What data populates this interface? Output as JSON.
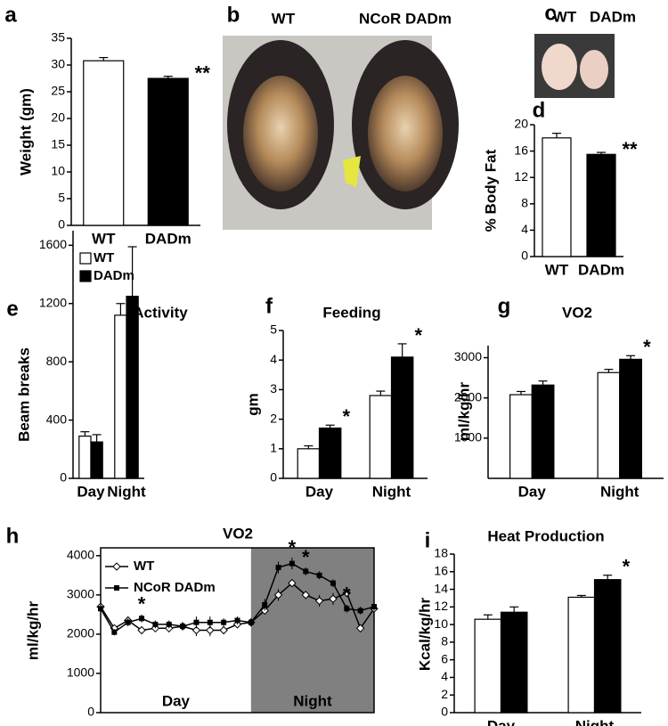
{
  "photos": [
    {
      "panel": "b",
      "labels": [
        "WT",
        "NCoR DADm"
      ]
    },
    {
      "panel": "c",
      "labels": [
        "WT",
        "DADm"
      ]
    }
  ],
  "chart_data": [
    {
      "type": "bar",
      "panel": "a",
      "ylabel": "Weight (gm)",
      "categories": [
        "WT",
        "DADm"
      ],
      "values": [
        30.8,
        27.5
      ],
      "errors": [
        0.6,
        0.4
      ],
      "colors": [
        "#ffffff",
        "#000000"
      ],
      "significance": [
        null,
        "**"
      ],
      "ylim": [
        0,
        35
      ],
      "yticks": [
        0,
        5,
        10,
        15,
        20,
        25,
        30,
        35
      ]
    },
    {
      "type": "bar",
      "panel": "d",
      "ylabel": "% Body Fat",
      "categories": [
        "WT",
        "DADm"
      ],
      "values": [
        18,
        15.5
      ],
      "errors": [
        0.7,
        0.3
      ],
      "colors": [
        "#ffffff",
        "#000000"
      ],
      "significance": [
        null,
        "**"
      ],
      "ylim": [
        0,
        20
      ],
      "yticks": [
        0,
        4,
        8,
        12,
        16,
        20
      ]
    },
    {
      "type": "bar",
      "panel": "e",
      "title": "Activity",
      "ylabel": "Beam breaks",
      "categories": [
        "Day",
        "Night"
      ],
      "series": [
        {
          "name": "WT",
          "color": "#ffffff",
          "values": [
            290,
            1120
          ],
          "errors": [
            30,
            80
          ]
        },
        {
          "name": "DADm",
          "color": "#000000",
          "values": [
            250,
            1250
          ],
          "errors": [
            50,
            340
          ]
        }
      ],
      "legend": true,
      "ylim": [
        0,
        1700
      ],
      "yticks": [
        0,
        400,
        800,
        1200,
        1600
      ]
    },
    {
      "type": "bar",
      "panel": "f",
      "title": "Feeding",
      "ylabel": "gm",
      "categories": [
        "Day",
        "Night"
      ],
      "series": [
        {
          "name": "WT",
          "color": "#ffffff",
          "values": [
            1.0,
            2.8
          ],
          "errors": [
            0.1,
            0.15
          ]
        },
        {
          "name": "DADm",
          "color": "#000000",
          "values": [
            1.7,
            4.1
          ],
          "errors": [
            0.1,
            0.45
          ],
          "significance": [
            "*",
            "*"
          ]
        }
      ],
      "legend": false,
      "ylim": [
        0,
        5
      ],
      "yticks": [
        0,
        1,
        2,
        3,
        4,
        5
      ]
    },
    {
      "type": "bar",
      "panel": "g",
      "title": "VO2",
      "ylabel": "ml/kg/hr",
      "categories": [
        "Day",
        "Night"
      ],
      "series": [
        {
          "name": "WT",
          "color": "#ffffff",
          "values": [
            2080,
            2630
          ],
          "errors": [
            80,
            80
          ]
        },
        {
          "name": "DADm",
          "color": "#000000",
          "values": [
            2320,
            2960
          ],
          "errors": [
            100,
            90
          ],
          "significance": [
            null,
            "*"
          ]
        }
      ],
      "legend": false,
      "ylim": [
        0,
        3300
      ],
      "yticks": [
        1000,
        2000,
        3000
      ]
    },
    {
      "type": "line",
      "panel": "h",
      "title": "VO2",
      "ylabel": "ml/kg/hr",
      "categories": [
        null,
        null,
        null,
        null,
        null,
        null,
        null,
        null,
        null,
        null,
        null,
        null,
        null,
        null,
        null,
        null,
        null,
        null,
        null,
        null,
        null
      ],
      "regions": [
        {
          "label": "Day",
          "from": 0,
          "to": 11
        },
        {
          "label": "Night",
          "from": 11,
          "to": 20,
          "color": "#808080"
        }
      ],
      "series": [
        {
          "name": "WT",
          "color": "#000000",
          "marker": "diamond",
          "values": [
            2700,
            2150,
            2350,
            2100,
            2150,
            2150,
            2200,
            2100,
            2100,
            2100,
            2250,
            2300,
            2600,
            3000,
            3300,
            3000,
            2850,
            2900,
            3050,
            2150,
            2650
          ],
          "errors": [
            150,
            80,
            100,
            80,
            80,
            100,
            100,
            150,
            150,
            100,
            100,
            100,
            100,
            150,
            100,
            100,
            150,
            150,
            100,
            100,
            100
          ]
        },
        {
          "name": "NCoR DADm",
          "color": "#000000",
          "marker": "square",
          "values": [
            2650,
            2050,
            2300,
            2400,
            2250,
            2250,
            2200,
            2300,
            2300,
            2300,
            2350,
            2300,
            2750,
            3700,
            3800,
            3600,
            3500,
            3300,
            2650,
            2600,
            2700
          ],
          "errors": [
            150,
            80,
            100,
            100,
            100,
            100,
            100,
            150,
            150,
            100,
            100,
            100,
            150,
            150,
            150,
            100,
            100,
            100,
            100,
            100,
            100
          ],
          "significance": [
            null,
            null,
            null,
            "*",
            null,
            null,
            null,
            null,
            null,
            null,
            null,
            null,
            null,
            null,
            "*",
            "*",
            null,
            null,
            "*",
            null,
            null
          ]
        }
      ],
      "legend": true,
      "ylim": [
        0,
        4200
      ],
      "yticks": [
        0,
        1000,
        2000,
        3000,
        4000
      ]
    },
    {
      "type": "bar",
      "panel": "i",
      "title": "Heat Production",
      "ylabel": "Kcal/kg/hr",
      "categories": [
        "Day",
        "Night"
      ],
      "series": [
        {
          "name": "WT",
          "color": "#ffffff",
          "values": [
            10.6,
            13.1
          ],
          "errors": [
            0.5,
            0.2
          ]
        },
        {
          "name": "DADm",
          "color": "#000000",
          "values": [
            11.4,
            15.1
          ],
          "errors": [
            0.6,
            0.5
          ],
          "significance": [
            null,
            "*"
          ]
        }
      ],
      "legend": false,
      "ylim": [
        0,
        18
      ],
      "yticks": [
        0,
        2,
        4,
        6,
        8,
        10,
        12,
        14,
        16,
        18
      ]
    }
  ]
}
